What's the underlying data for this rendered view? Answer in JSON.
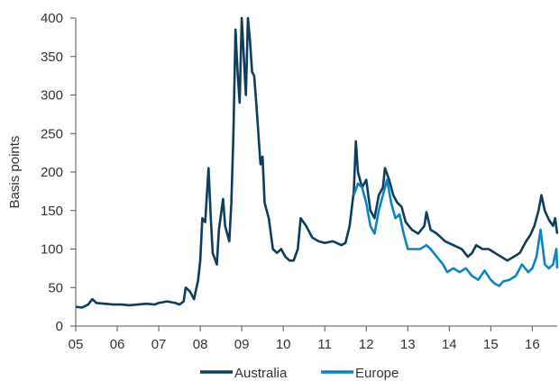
{
  "chart_data": {
    "type": "line",
    "ylabel": "Basis points",
    "xlabel": "",
    "ylim": [
      0,
      400
    ],
    "yticks": [
      0,
      50,
      100,
      150,
      200,
      250,
      300,
      350,
      400
    ],
    "xlim": [
      2005.0,
      2016.6
    ],
    "xticks": [
      {
        "value": 2005,
        "label": "05"
      },
      {
        "value": 2006,
        "label": "06"
      },
      {
        "value": 2007,
        "label": "07"
      },
      {
        "value": 2008,
        "label": "08"
      },
      {
        "value": 2009,
        "label": "09"
      },
      {
        "value": 2010,
        "label": "10"
      },
      {
        "value": 2011,
        "label": "11"
      },
      {
        "value": 2012,
        "label": "12"
      },
      {
        "value": 2013,
        "label": "13"
      },
      {
        "value": 2014,
        "label": "14"
      },
      {
        "value": 2015,
        "label": "15"
      },
      {
        "value": 2016,
        "label": "16"
      }
    ],
    "grid": false,
    "legend_position": "bottom",
    "series": [
      {
        "name": "Australia",
        "color": "#0d3d5f",
        "points": [
          [
            2005.0,
            25
          ],
          [
            2005.15,
            24
          ],
          [
            2005.3,
            28
          ],
          [
            2005.4,
            35
          ],
          [
            2005.5,
            30
          ],
          [
            2005.7,
            29
          ],
          [
            2005.9,
            28
          ],
          [
            2006.1,
            28
          ],
          [
            2006.3,
            27
          ],
          [
            2006.5,
            28
          ],
          [
            2006.7,
            29
          ],
          [
            2006.9,
            28
          ],
          [
            2007.0,
            30
          ],
          [
            2007.2,
            32
          ],
          [
            2007.4,
            30
          ],
          [
            2007.5,
            28
          ],
          [
            2007.6,
            32
          ],
          [
            2007.65,
            50
          ],
          [
            2007.75,
            45
          ],
          [
            2007.85,
            35
          ],
          [
            2007.95,
            60
          ],
          [
            2008.0,
            85
          ],
          [
            2008.05,
            140
          ],
          [
            2008.12,
            135
          ],
          [
            2008.2,
            205
          ],
          [
            2008.25,
            145
          ],
          [
            2008.3,
            95
          ],
          [
            2008.4,
            80
          ],
          [
            2008.45,
            125
          ],
          [
            2008.55,
            165
          ],
          [
            2008.6,
            130
          ],
          [
            2008.7,
            110
          ],
          [
            2008.75,
            160
          ],
          [
            2008.8,
            250
          ],
          [
            2008.85,
            385
          ],
          [
            2008.9,
            330
          ],
          [
            2008.95,
            290
          ],
          [
            2009.0,
            400
          ],
          [
            2009.05,
            350
          ],
          [
            2009.1,
            300
          ],
          [
            2009.15,
            400
          ],
          [
            2009.2,
            370
          ],
          [
            2009.25,
            330
          ],
          [
            2009.3,
            325
          ],
          [
            2009.35,
            290
          ],
          [
            2009.4,
            250
          ],
          [
            2009.45,
            210
          ],
          [
            2009.5,
            220
          ],
          [
            2009.55,
            160
          ],
          [
            2009.6,
            150
          ],
          [
            2009.65,
            140
          ],
          [
            2009.7,
            120
          ],
          [
            2009.75,
            100
          ],
          [
            2009.85,
            95
          ],
          [
            2009.95,
            100
          ],
          [
            2010.05,
            90
          ],
          [
            2010.15,
            85
          ],
          [
            2010.25,
            85
          ],
          [
            2010.35,
            100
          ],
          [
            2010.42,
            140
          ],
          [
            2010.55,
            130
          ],
          [
            2010.7,
            115
          ],
          [
            2010.85,
            110
          ],
          [
            2011.0,
            108
          ],
          [
            2011.2,
            110
          ],
          [
            2011.4,
            105
          ],
          [
            2011.5,
            108
          ],
          [
            2011.6,
            130
          ],
          [
            2011.7,
            175
          ],
          [
            2011.75,
            240
          ],
          [
            2011.8,
            200
          ],
          [
            2011.9,
            180
          ],
          [
            2012.0,
            190
          ],
          [
            2012.1,
            150
          ],
          [
            2012.2,
            140
          ],
          [
            2012.3,
            170
          ],
          [
            2012.4,
            180
          ],
          [
            2012.45,
            205
          ],
          [
            2012.55,
            190
          ],
          [
            2012.65,
            170
          ],
          [
            2012.75,
            160
          ],
          [
            2012.85,
            155
          ],
          [
            2012.95,
            135
          ],
          [
            2013.1,
            125
          ],
          [
            2013.25,
            120
          ],
          [
            2013.4,
            130
          ],
          [
            2013.45,
            148
          ],
          [
            2013.55,
            125
          ],
          [
            2013.7,
            120
          ],
          [
            2013.9,
            110
          ],
          [
            2014.1,
            105
          ],
          [
            2014.3,
            100
          ],
          [
            2014.45,
            90
          ],
          [
            2014.55,
            95
          ],
          [
            2014.65,
            105
          ],
          [
            2014.8,
            100
          ],
          [
            2014.95,
            100
          ],
          [
            2015.1,
            95
          ],
          [
            2015.25,
            90
          ],
          [
            2015.4,
            85
          ],
          [
            2015.55,
            90
          ],
          [
            2015.7,
            95
          ],
          [
            2015.85,
            110
          ],
          [
            2015.95,
            118
          ],
          [
            2016.05,
            130
          ],
          [
            2016.15,
            150
          ],
          [
            2016.22,
            170
          ],
          [
            2016.3,
            150
          ],
          [
            2016.4,
            138
          ],
          [
            2016.5,
            130
          ],
          [
            2016.55,
            140
          ],
          [
            2016.6,
            120
          ]
        ]
      },
      {
        "name": "Europe",
        "color": "#0b84c2",
        "points": [
          [
            2011.7,
            170
          ],
          [
            2011.8,
            185
          ],
          [
            2011.9,
            180
          ],
          [
            2012.0,
            160
          ],
          [
            2012.1,
            130
          ],
          [
            2012.2,
            120
          ],
          [
            2012.3,
            150
          ],
          [
            2012.4,
            170
          ],
          [
            2012.5,
            190
          ],
          [
            2012.6,
            160
          ],
          [
            2012.7,
            140
          ],
          [
            2012.8,
            145
          ],
          [
            2012.9,
            120
          ],
          [
            2013.0,
            100
          ],
          [
            2013.15,
            100
          ],
          [
            2013.3,
            100
          ],
          [
            2013.45,
            105
          ],
          [
            2013.55,
            100
          ],
          [
            2013.7,
            90
          ],
          [
            2013.85,
            80
          ],
          [
            2013.95,
            70
          ],
          [
            2014.1,
            75
          ],
          [
            2014.25,
            70
          ],
          [
            2014.4,
            75
          ],
          [
            2014.55,
            65
          ],
          [
            2014.7,
            60
          ],
          [
            2014.85,
            72
          ],
          [
            2015.0,
            60
          ],
          [
            2015.1,
            55
          ],
          [
            2015.2,
            52
          ],
          [
            2015.3,
            58
          ],
          [
            2015.45,
            60
          ],
          [
            2015.6,
            65
          ],
          [
            2015.75,
            80
          ],
          [
            2015.9,
            70
          ],
          [
            2016.0,
            75
          ],
          [
            2016.1,
            90
          ],
          [
            2016.2,
            125
          ],
          [
            2016.3,
            80
          ],
          [
            2016.4,
            75
          ],
          [
            2016.5,
            80
          ],
          [
            2016.58,
            100
          ],
          [
            2016.6,
            75
          ]
        ]
      }
    ]
  }
}
